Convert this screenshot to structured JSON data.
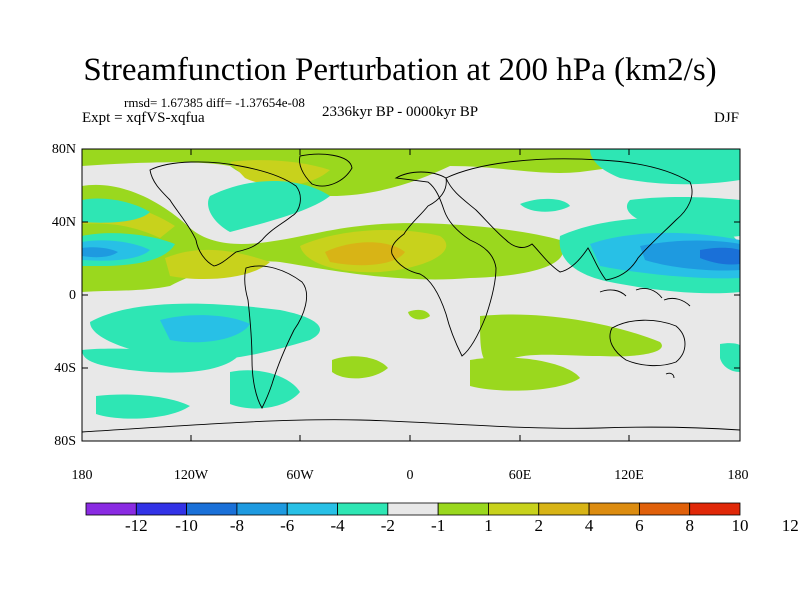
{
  "title": "Streamfunction Perturbation at 200 hPa (km2/s)",
  "stats": "rmsd= 1.67385 diff= -1.37654e-08",
  "experiment": "Expt = xqfVS-xqfua",
  "period": "2336kyr BP - 0000kyr BP",
  "season": "DJF",
  "axes": {
    "lat_labels": [
      "80N",
      "40N",
      "0",
      "40S",
      "80S"
    ],
    "lon_labels": [
      "180",
      "120W",
      "60W",
      "0",
      "60E",
      "120E",
      "180"
    ]
  },
  "colorbar": {
    "colors": [
      "#8a2be2",
      "#3232e6",
      "#1a70d8",
      "#1e9ae0",
      "#28c0e6",
      "#2ee6b4",
      "#e8e8e8",
      "#9ad81e",
      "#c8d21c",
      "#d8b416",
      "#dc8c10",
      "#e0600a",
      "#e02808"
    ],
    "labels": [
      "-12",
      "-10",
      "-8",
      "-6",
      "-4",
      "-2",
      "-1",
      "1",
      "2",
      "4",
      "6",
      "8",
      "10",
      "12"
    ]
  }
}
